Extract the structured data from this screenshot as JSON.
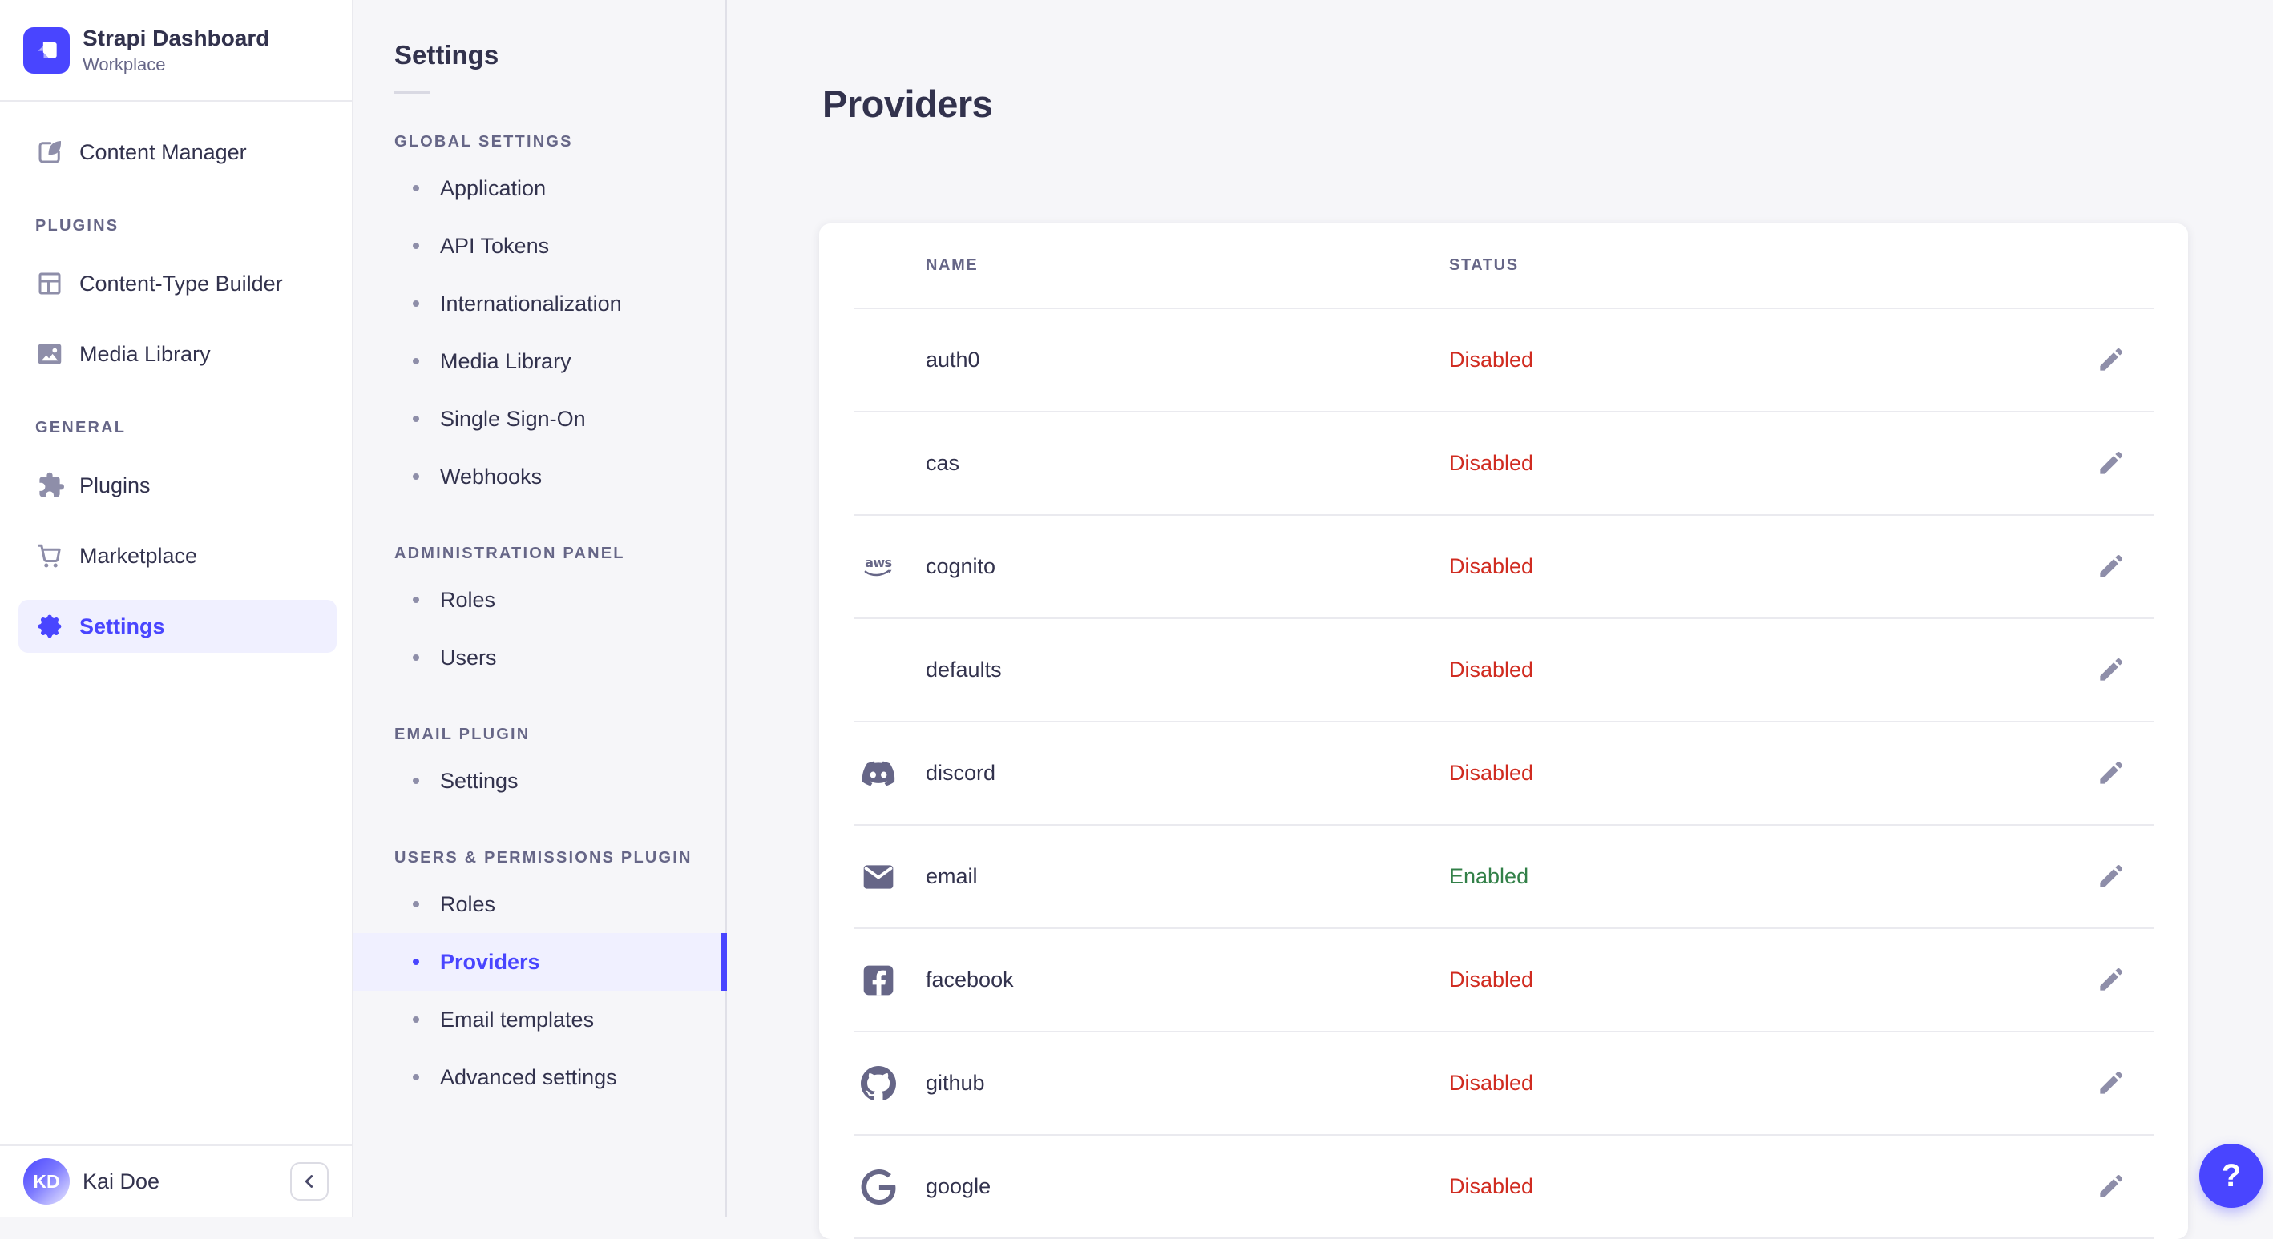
{
  "app": {
    "brand": {
      "name": "Strapi Dashboard",
      "workspace": "Workplace"
    },
    "user": {
      "name": "Kai Doe",
      "initials": "KD"
    },
    "help_button": "?"
  },
  "main_nav": {
    "top_items": [
      {
        "label": "Content Manager",
        "icon": "content-manager",
        "active": false
      }
    ],
    "sections": [
      {
        "label": "PLUGINS",
        "items": [
          {
            "label": "Content-Type Builder",
            "icon": "content-type-builder",
            "active": false
          },
          {
            "label": "Media Library",
            "icon": "media-library",
            "active": false
          }
        ]
      },
      {
        "label": "GENERAL",
        "items": [
          {
            "label": "Plugins",
            "icon": "plugins",
            "active": false
          },
          {
            "label": "Marketplace",
            "icon": "marketplace",
            "active": false
          },
          {
            "label": "Settings",
            "icon": "settings",
            "active": true
          }
        ]
      }
    ]
  },
  "subnav": {
    "title": "Settings",
    "sections": [
      {
        "label": "GLOBAL SETTINGS",
        "items": [
          {
            "label": "Application",
            "active": false
          },
          {
            "label": "API Tokens",
            "active": false
          },
          {
            "label": "Internationalization",
            "active": false
          },
          {
            "label": "Media Library",
            "active": false
          },
          {
            "label": "Single Sign-On",
            "active": false
          },
          {
            "label": "Webhooks",
            "active": false
          }
        ]
      },
      {
        "label": "ADMINISTRATION PANEL",
        "items": [
          {
            "label": "Roles",
            "active": false
          },
          {
            "label": "Users",
            "active": false
          }
        ]
      },
      {
        "label": "EMAIL PLUGIN",
        "items": [
          {
            "label": "Settings",
            "active": false
          }
        ]
      },
      {
        "label": "USERS & PERMISSIONS PLUGIN",
        "items": [
          {
            "label": "Roles",
            "active": false
          },
          {
            "label": "Providers",
            "active": true
          },
          {
            "label": "Email templates",
            "active": false
          },
          {
            "label": "Advanced settings",
            "active": false
          }
        ]
      }
    ]
  },
  "page": {
    "title": "Providers",
    "table": {
      "columns": [
        "NAME",
        "STATUS"
      ],
      "rows": [
        {
          "name": "auth0",
          "icon": null,
          "status": "Disabled"
        },
        {
          "name": "cas",
          "icon": null,
          "status": "Disabled"
        },
        {
          "name": "cognito",
          "icon": "aws",
          "status": "Disabled"
        },
        {
          "name": "defaults",
          "icon": null,
          "status": "Disabled"
        },
        {
          "name": "discord",
          "icon": "discord",
          "status": "Disabled"
        },
        {
          "name": "email",
          "icon": "email",
          "status": "Enabled"
        },
        {
          "name": "facebook",
          "icon": "facebook",
          "status": "Disabled"
        },
        {
          "name": "github",
          "icon": "github",
          "status": "Disabled"
        },
        {
          "name": "google",
          "icon": "google",
          "status": "Disabled"
        }
      ]
    }
  },
  "colors": {
    "primary": "#4945ff",
    "primary_bg": "#f0f0ff",
    "text": "#32324d",
    "muted": "#666687",
    "icon_gray": "#8e8ea9",
    "border": "#eaeaef",
    "danger": "#d02b20",
    "success": "#328048",
    "surface": "#ffffff",
    "bg": "#f6f6f9"
  }
}
